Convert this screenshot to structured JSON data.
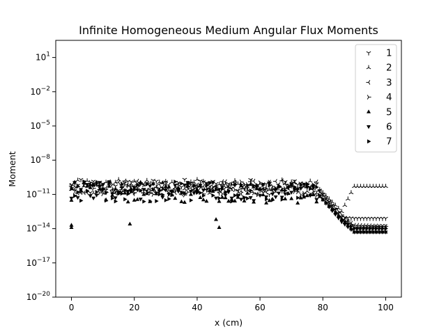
{
  "chart_data": {
    "type": "scatter",
    "title": "Infinite Homogeneous Medium Angular Flux Moments",
    "xlabel": "x (cm)",
    "ylabel": "Moment",
    "xlim": [
      -5,
      105
    ],
    "ylim_log10": [
      -20,
      2.5
    ],
    "yscale": "log",
    "x_ticks": [
      0,
      20,
      40,
      60,
      80,
      100
    ],
    "y_ticks_exponents": [
      -20,
      -17,
      -14,
      -11,
      -8,
      -5,
      -2,
      1
    ],
    "grid": false,
    "legend_position": "top-right",
    "marker_color": "#000000",
    "x_step": 1,
    "series": [
      {
        "name": "1",
        "marker": "tri_down",
        "log10_profile": [
          [
            0,
            -10.4
          ],
          [
            78,
            -10.3
          ],
          [
            86,
            -13.0
          ],
          [
            90,
            -13.1
          ],
          [
            100,
            -13.1
          ]
        ],
        "log10_spread": 0.7,
        "spread_until_x": 78
      },
      {
        "name": "2",
        "marker": "tri_up",
        "log10_profile": [
          [
            0,
            -10.3
          ],
          [
            78,
            -10.3
          ],
          [
            86,
            -12.5
          ],
          [
            90,
            -10.3
          ],
          [
            100,
            -10.3
          ]
        ],
        "log10_spread": 0.6,
        "spread_until_x": 78
      },
      {
        "name": "3",
        "marker": "tri_left",
        "log10_profile": [
          [
            0,
            -10.4
          ],
          [
            78,
            -10.4
          ],
          [
            86,
            -13.0
          ],
          [
            90,
            -13.7
          ],
          [
            100,
            -13.8
          ]
        ],
        "log10_spread": 0.6,
        "spread_until_x": 78
      },
      {
        "name": "4",
        "marker": "tri_right",
        "log10_profile": [
          [
            0,
            -10.5
          ],
          [
            78,
            -10.5
          ],
          [
            86,
            -12.8
          ],
          [
            90,
            -13.9
          ],
          [
            100,
            -13.8
          ]
        ],
        "log10_spread": 0.6,
        "spread_until_x": 78
      },
      {
        "name": "5",
        "marker": "triangle_up",
        "log10_profile": [
          [
            0,
            -10.8
          ],
          [
            78,
            -10.9
          ],
          [
            86,
            -13.2
          ],
          [
            90,
            -14.3
          ],
          [
            100,
            -14.3
          ]
        ],
        "log10_spread": 0.9,
        "spread_until_x": 78
      },
      {
        "name": "6",
        "marker": "triangle_down",
        "log10_profile": [
          [
            0,
            -10.6
          ],
          [
            78,
            -10.8
          ],
          [
            86,
            -13.4
          ],
          [
            90,
            -14.3
          ],
          [
            100,
            -14.3
          ]
        ],
        "log10_spread": 0.8,
        "spread_until_x": 78
      },
      {
        "name": "7",
        "marker": "triangle_right",
        "log10_profile": [
          [
            0,
            -10.7
          ],
          [
            78,
            -10.8
          ],
          [
            86,
            -13.2
          ],
          [
            90,
            -14.0
          ],
          [
            100,
            -14.0
          ]
        ],
        "log10_spread": 0.9,
        "spread_until_x": 78
      }
    ],
    "notable_points": [
      {
        "x": 0,
        "log10_y": -13.7
      },
      {
        "x": 0,
        "log10_y": -13.9
      },
      {
        "x": 18.6,
        "log10_y": -13.6
      },
      {
        "x": 47,
        "log10_y": -13.9
      },
      {
        "x": 46,
        "log10_y": -13.2
      }
    ]
  }
}
